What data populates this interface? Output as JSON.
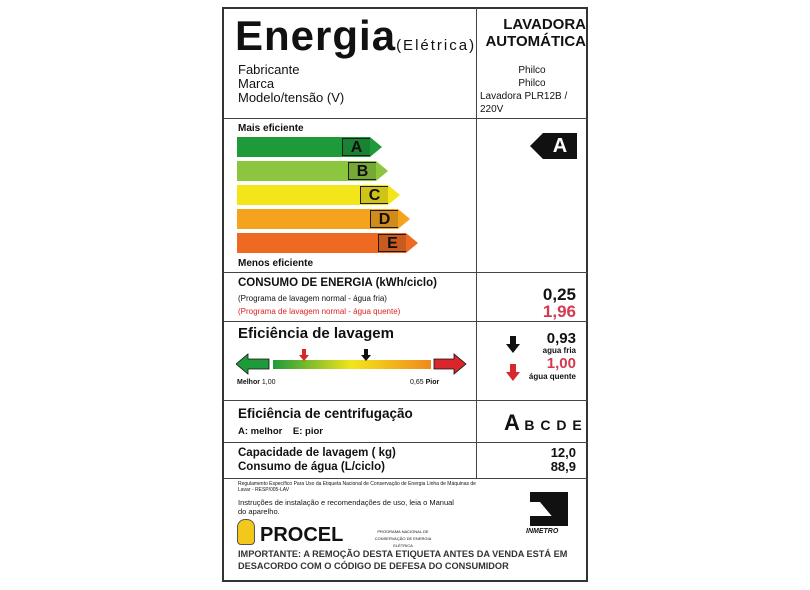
{
  "header": {
    "title": "Energia",
    "subtitle": "(Elétrica)",
    "product_line1": "LAVADORA",
    "product_line2": "AUTOMÁTICA"
  },
  "info": {
    "labels": [
      "Fabricante",
      "Marca",
      "Modelo/tensão (V)"
    ],
    "values": [
      "Philco",
      "Philco",
      "Lavadora PLR12B / 220V"
    ]
  },
  "scale": {
    "top": "Mais eficiente",
    "bottom": "Menos eficiente",
    "classes": [
      {
        "letter": "A",
        "color": "#1f9a3a"
      },
      {
        "letter": "B",
        "color": "#8cc63f"
      },
      {
        "letter": "C",
        "color": "#f2e51a"
      },
      {
        "letter": "D",
        "color": "#f5a31c"
      },
      {
        "letter": "E",
        "color": "#ee6a23"
      }
    ],
    "rating": "A"
  },
  "consumption": {
    "title": "CONSUMO DE ENERGIA (kWh/ciclo)",
    "cold_label": "(Programa de lavagem normal - água fria)",
    "hot_label": "(Programa de lavagem normal - água quente)",
    "cold_value": "0,25",
    "hot_value": "1,96"
  },
  "wash": {
    "title": "Eficiência de lavagem",
    "best": "Melhor",
    "best_value": "1,00",
    "worst_value": "0,65",
    "worst": "Pior",
    "cold_value": "0,93",
    "cold_label": "agua fria",
    "hot_value": "1,00",
    "hot_label": "água quente"
  },
  "spin": {
    "title": "Eficiência de centrifugação",
    "best": "A: melhor",
    "worst": "E: pior",
    "rating": "A",
    "others": "B C D E"
  },
  "capacity": {
    "label": "Capacidade de lavagem ( kg)",
    "value": "12,0"
  },
  "water": {
    "label": "Consumo de água (L/ciclo)",
    "value": "88,9"
  },
  "footer": {
    "regulation": "Regulamento Específico Para Uso da Etiqueta Nacional de Conservação de Energia Linha de Máquinas de Lavar - RESP/005-LAV",
    "instructions": "Instruções de instalação e recomendações de uso, leia o Manual do aparelho.",
    "procel": "PROCEL",
    "procel_sub": "PROGRAMA NACIONAL DE CONSERVAÇÃO DE ENERGIA ELÉTRICA",
    "inmetro": "INMETRO",
    "warning": "IMPORTANTE: A REMOÇÃO DESTA ETIQUETA ANTES DA VENDA ESTÁ EM DESACORDO COM O CÓDIGO DE DEFESA DO CONSUMIDOR"
  }
}
